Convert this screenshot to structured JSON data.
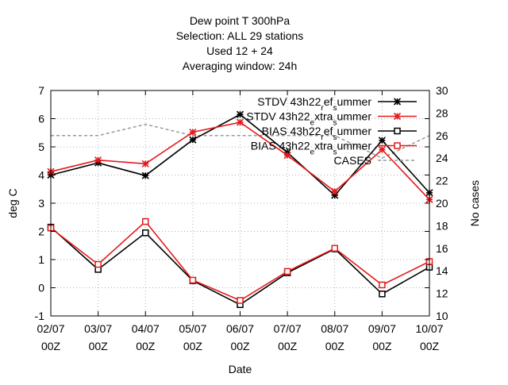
{
  "chart_data": {
    "type": "line",
    "title_lines": [
      "Dew point T 300hPa",
      "Selection: ALL      29 stations",
      "Used  12  + 24",
      "Averaging window: 24h"
    ],
    "xlabel": "Date",
    "ylabel": "deg C",
    "y2label": "No cases",
    "categories": [
      [
        "02/07",
        "00Z"
      ],
      [
        "03/07",
        "00Z"
      ],
      [
        "04/07",
        "00Z"
      ],
      [
        "05/07",
        "00Z"
      ],
      [
        "06/07",
        "00Z"
      ],
      [
        "07/07",
        "00Z"
      ],
      [
        "08/07",
        "00Z"
      ],
      [
        "09/07",
        "00Z"
      ],
      [
        "10/07",
        "00Z"
      ]
    ],
    "ylim": [
      -1,
      7
    ],
    "yticks": [
      -1,
      0,
      1,
      2,
      3,
      4,
      5,
      6,
      7
    ],
    "y2lim": [
      10,
      30
    ],
    "y2ticks": [
      10,
      12,
      14,
      16,
      18,
      20,
      22,
      24,
      26,
      28,
      30
    ],
    "grid": true,
    "legend_position": "top-right",
    "series": [
      {
        "name": "STDV 43h22_ref_summer",
        "legend_parts": [
          [
            "STDV 43h22",
            ""
          ],
          [
            "r",
            "sub"
          ],
          [
            "ef",
            ""
          ],
          [
            "s",
            "sub"
          ],
          [
            "ummer",
            ""
          ]
        ],
        "axis": "y",
        "color": "#000000",
        "marker": "star",
        "values": [
          4.0,
          4.43,
          3.98,
          5.25,
          6.15,
          4.8,
          3.28,
          5.23,
          3.37
        ]
      },
      {
        "name": "STDV 43h22_extra_summer",
        "legend_parts": [
          [
            "STDV 43h22",
            ""
          ],
          [
            "e",
            "sub"
          ],
          [
            "xtra",
            ""
          ],
          [
            "s",
            "sub"
          ],
          [
            "ummer",
            ""
          ]
        ],
        "axis": "y",
        "color": "#e41a1c",
        "marker": "star",
        "values": [
          4.12,
          4.53,
          4.4,
          5.52,
          5.87,
          4.7,
          3.42,
          4.9,
          3.13
        ]
      },
      {
        "name": "BIAS 43h22_ref_summer",
        "legend_parts": [
          [
            "BIAS 43h22",
            ""
          ],
          [
            "r",
            "sub"
          ],
          [
            "ef",
            ""
          ],
          [
            "s",
            "sub"
          ],
          [
            "ummer",
            ""
          ]
        ],
        "axis": "y",
        "color": "#000000",
        "marker": "square",
        "values": [
          2.15,
          0.65,
          1.95,
          0.25,
          -0.6,
          0.53,
          1.38,
          -0.22,
          0.73
        ]
      },
      {
        "name": "BIAS 43h22_extra_summer",
        "legend_parts": [
          [
            "BIAS 43h22",
            ""
          ],
          [
            "e",
            "sub"
          ],
          [
            "xtra",
            ""
          ],
          [
            "s",
            "sub"
          ],
          [
            "ummer",
            ""
          ]
        ],
        "axis": "y",
        "color": "#e41a1c",
        "marker": "square",
        "values": [
          2.12,
          0.83,
          2.35,
          0.27,
          -0.45,
          0.58,
          1.4,
          0.1,
          0.93
        ]
      },
      {
        "name": "CASES",
        "legend_parts": [
          [
            "CASES",
            ""
          ]
        ],
        "axis": "y2",
        "color": "#999999",
        "marker": "none",
        "dashed": true,
        "values": [
          26,
          26,
          27,
          26,
          26,
          26,
          26,
          24,
          26
        ]
      }
    ]
  }
}
